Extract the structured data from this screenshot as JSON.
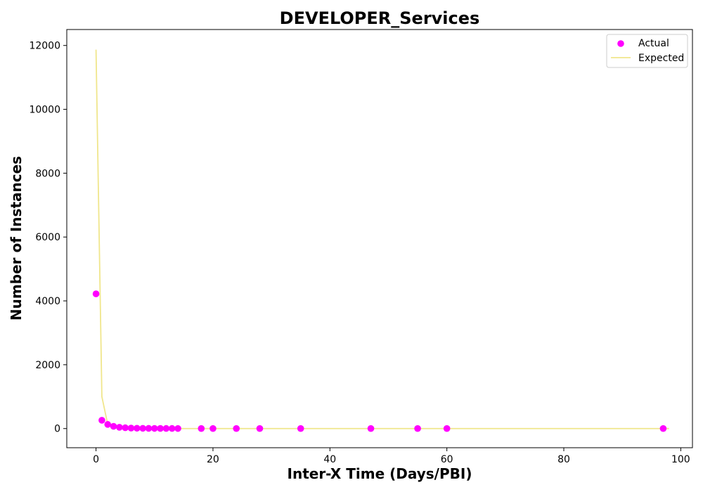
{
  "chart_data": {
    "type": "scatter",
    "title": "DEVELOPER_Services",
    "xlabel": "Inter-X Time (Days/PBI)",
    "ylabel": "Number of Instances",
    "xlim": [
      -5,
      102
    ],
    "ylim": [
      -600,
      12500
    ],
    "xticks": [
      0,
      20,
      40,
      60,
      80,
      100
    ],
    "yticks": [
      0,
      2000,
      4000,
      6000,
      8000,
      10000,
      12000
    ],
    "grid": false,
    "legend_placement": "top-right",
    "series": [
      {
        "name": "Actual",
        "kind": "scatter",
        "color": "#ff00ff",
        "x": [
          0,
          1,
          2,
          3,
          4,
          5,
          6,
          7,
          8,
          9,
          10,
          11,
          12,
          13,
          14,
          18,
          20,
          24,
          28,
          35,
          47,
          55,
          60,
          97
        ],
        "y": [
          4220,
          260,
          130,
          70,
          40,
          25,
          15,
          10,
          8,
          6,
          5,
          4,
          3,
          3,
          2,
          1,
          1,
          1,
          1,
          1,
          1,
          1,
          1,
          1
        ]
      },
      {
        "name": "Expected",
        "kind": "line",
        "color": "#f0e68c",
        "x": [
          0,
          1,
          2,
          3,
          4,
          5,
          6,
          7,
          8,
          9,
          10,
          12,
          14,
          20,
          30,
          40,
          60,
          80,
          98
        ],
        "y": [
          11870,
          1000,
          130,
          50,
          20,
          8,
          4,
          2,
          1,
          1,
          0,
          0,
          0,
          0,
          0,
          0,
          0,
          0,
          0
        ]
      }
    ]
  }
}
